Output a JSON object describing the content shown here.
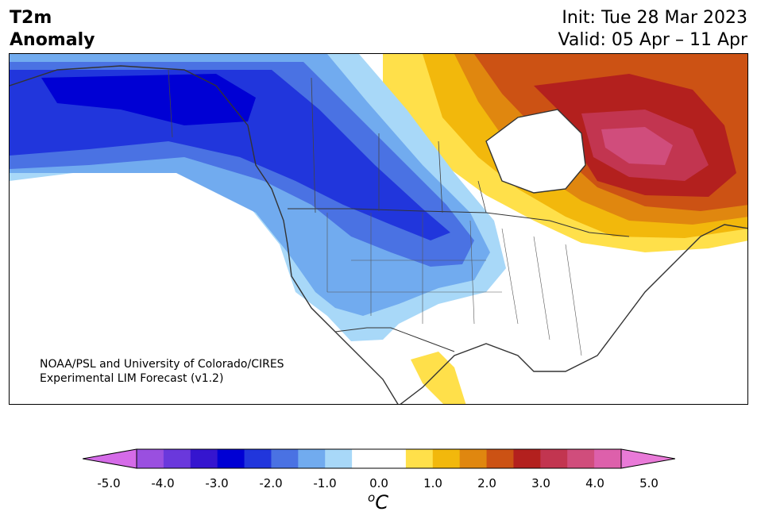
{
  "header": {
    "title_line1": "T2m",
    "title_line2": "Anomaly",
    "init": "Init: Tue 28 Mar 2023",
    "valid": "Valid: 05 Apr – 11 Apr"
  },
  "map": {
    "credit_line1": "NOAA/PSL and University of Colorado/CIRES",
    "credit_line2": "Experimental LIM Forecast (v1.2)",
    "region": "North America",
    "anomalies": [
      {
        "area": "Alaska / Yukon",
        "level": "-3.0 to -2.5"
      },
      {
        "area": "Northern Great Plains",
        "level": "-2.5 to -2.0"
      },
      {
        "area": "Western US",
        "level": "-1.5 to -0.5"
      },
      {
        "area": "Hudson Bay / Quebec",
        "level": "3.0 to 4.0"
      },
      {
        "area": "Northern Mexico",
        "level": "0.5 to 1.0"
      }
    ]
  },
  "colorbar": {
    "tick_labels": [
      "-5.0",
      "-4.0",
      "-3.0",
      "-2.0",
      "-1.0",
      "0.0",
      "1.0",
      "2.0",
      "3.0",
      "4.0",
      "5.0"
    ],
    "unit_base": "C",
    "unit_sup": "o",
    "colors": [
      "#d56be8",
      "#9a4fe0",
      "#6a38dc",
      "#3515cf",
      "#0000d4",
      "#2136dc",
      "#4a72e3",
      "#71abef",
      "#a8d8f8",
      "#ffffff",
      "#ffffff",
      "#ffe04a",
      "#f2b80c",
      "#e0870f",
      "#cc5214",
      "#b3201e",
      "#c23550",
      "#d04d7c",
      "#dd60ab",
      "#e97ad8"
    ]
  }
}
